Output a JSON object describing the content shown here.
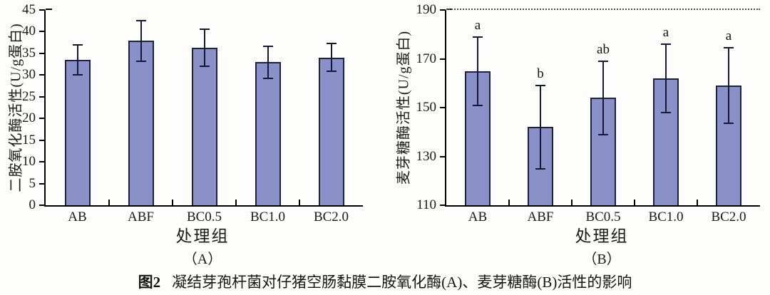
{
  "caption": {
    "label": "图2",
    "text": "凝结芽孢杆菌对仔猪空肠黏膜二胺氧化酶(A)、麦芽糖酶(B)活性的影响"
  },
  "colors": {
    "bar_fill": "#8a91c9",
    "bar_border": "#1c2342",
    "error_bar": "#141a33",
    "axis": "#000000"
  },
  "chart_data": [
    {
      "type": "bar",
      "panel": "（A）",
      "ylabel": "二胺氧化酶活性(U/g蛋白)",
      "xlabel": "处理组",
      "categories": [
        "AB",
        "ABF",
        "BC0.5",
        "BC1.0",
        "BC2.0"
      ],
      "values": [
        33.5,
        37.9,
        36.3,
        33.0,
        34.0
      ],
      "errors": [
        3.5,
        4.7,
        4.2,
        3.7,
        3.2
      ],
      "sig_letters": [
        "",
        "",
        "",
        "",
        ""
      ],
      "ylim": [
        0,
        45
      ],
      "yticks": [
        0,
        5,
        10,
        15,
        20,
        25,
        30,
        35,
        40,
        45
      ],
      "grid": false,
      "top_dotted_line": false,
      "legend": null
    },
    {
      "type": "bar",
      "panel": "（B）",
      "ylabel": "麦芽糖酶活性(U/g蛋白)",
      "xlabel": "处理组",
      "categories": [
        "AB",
        "ABF",
        "BC0.5",
        "BC1.0",
        "BC2.0"
      ],
      "values": [
        165,
        142,
        154,
        162,
        159
      ],
      "errors": [
        14,
        17,
        15,
        14,
        15.5
      ],
      "sig_letters": [
        "a",
        "b",
        "ab",
        "a",
        "a"
      ],
      "ylim": [
        110,
        190
      ],
      "yticks": [
        110,
        130,
        150,
        170,
        190
      ],
      "grid": false,
      "top_dotted_line": true,
      "legend": null
    }
  ]
}
